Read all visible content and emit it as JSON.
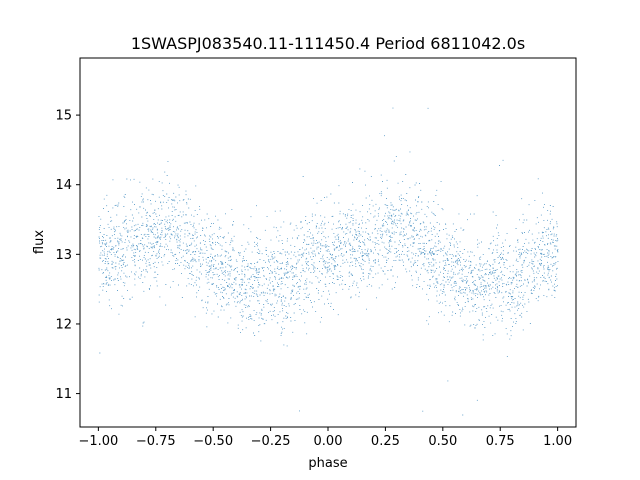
{
  "chart_data": {
    "type": "scatter",
    "title": "1SWASPJ083540.11-111450.4 Period 6811042.0s",
    "xlabel": "phase",
    "ylabel": "flux",
    "xlim": [
      -1.08,
      1.08
    ],
    "ylim": [
      10.52,
      15.82
    ],
    "x_ticks": [
      -1.0,
      -0.75,
      -0.5,
      -0.25,
      0.0,
      0.25,
      0.5,
      0.75,
      1.0
    ],
    "x_tick_labels": [
      "−1.00",
      "−0.75",
      "−0.50",
      "−0.25",
      "0.00",
      "0.25",
      "0.50",
      "0.75",
      "1.00"
    ],
    "y_ticks": [
      11,
      12,
      13,
      14,
      15
    ],
    "y_tick_labels": [
      "11",
      "12",
      "13",
      "14",
      "15"
    ],
    "grid": false,
    "marker_color": "#1f77b4",
    "series": [
      {
        "profile_phase": [
          -1.0,
          -0.9,
          -0.8,
          -0.75,
          -0.7,
          -0.65,
          -0.6,
          -0.55,
          -0.5,
          -0.45,
          -0.4,
          -0.35,
          -0.3,
          -0.25,
          -0.2,
          -0.15,
          -0.1,
          -0.05,
          0.0
        ],
        "profile_median_flux": [
          13.0,
          13.05,
          13.2,
          13.3,
          13.35,
          13.3,
          13.15,
          13.0,
          12.85,
          12.75,
          12.65,
          12.55,
          12.6,
          12.7,
          12.55,
          12.7,
          12.9,
          13.0,
          13.0
        ],
        "profile_scatter": 0.35,
        "point_count_approx": 24000
      }
    ]
  }
}
